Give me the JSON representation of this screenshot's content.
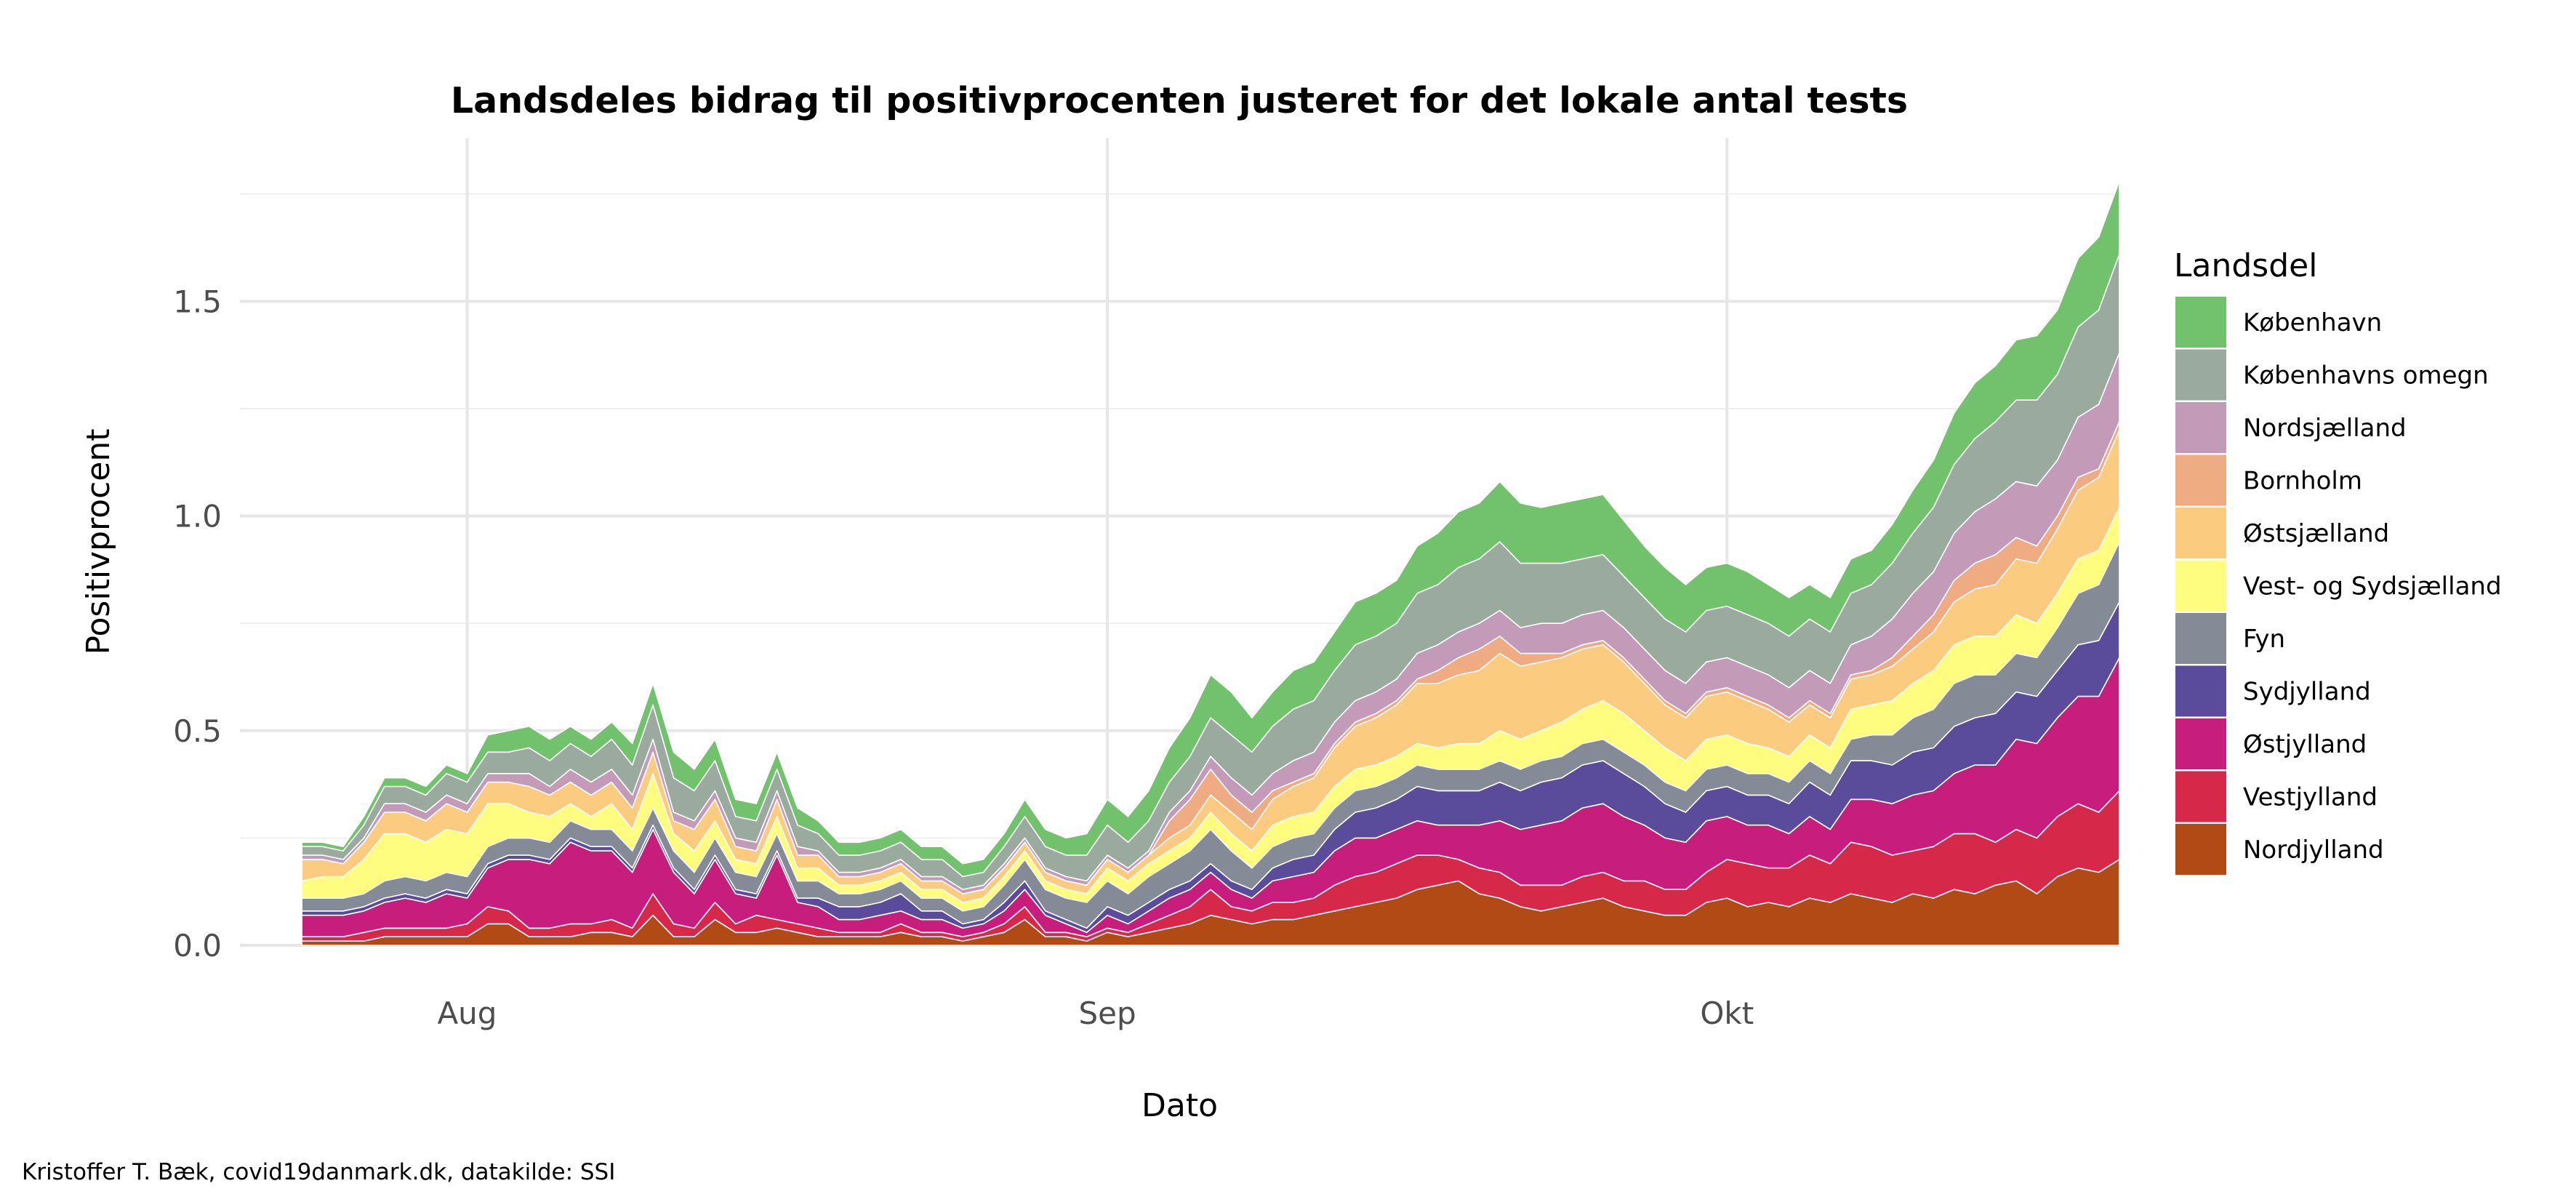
{
  "chart_data": {
    "type": "area",
    "stacked": true,
    "title": "Landsdeles bidrag til positivprocenten justeret for det lokale antal tests",
    "xlabel": "Dato",
    "ylabel": "Positivprocent",
    "caption": "Kristoffer T. Bæk, covid19danmark.dk, datakilde: SSI",
    "legend_title": "Landsdel",
    "legend_position": "right",
    "grid": true,
    "ylim": [
      0,
      1.88
    ],
    "xlim": [
      "2020-07-21",
      "2020-10-20"
    ],
    "x_start": "2020-07-24",
    "y_ticks": [
      0.0,
      0.5,
      1.0,
      1.5
    ],
    "y_tick_labels": [
      "0.0",
      "0.5",
      "1.0",
      "1.5"
    ],
    "x_ticks": [
      "2020-08-01",
      "2020-09-01",
      "2020-10-01"
    ],
    "x_tick_labels": [
      "Aug",
      "Sep",
      "Okt"
    ],
    "dates": [
      "2020-07-24",
      "2020-07-25",
      "2020-07-26",
      "2020-07-27",
      "2020-07-28",
      "2020-07-29",
      "2020-07-30",
      "2020-07-31",
      "2020-08-01",
      "2020-08-02",
      "2020-08-03",
      "2020-08-04",
      "2020-08-05",
      "2020-08-06",
      "2020-08-07",
      "2020-08-08",
      "2020-08-09",
      "2020-08-10",
      "2020-08-11",
      "2020-08-12",
      "2020-08-13",
      "2020-08-14",
      "2020-08-15",
      "2020-08-16",
      "2020-08-17",
      "2020-08-18",
      "2020-08-19",
      "2020-08-20",
      "2020-08-21",
      "2020-08-22",
      "2020-08-23",
      "2020-08-24",
      "2020-08-25",
      "2020-08-26",
      "2020-08-27",
      "2020-08-28",
      "2020-08-29",
      "2020-08-30",
      "2020-08-31",
      "2020-09-01",
      "2020-09-02",
      "2020-09-03",
      "2020-09-04",
      "2020-09-05",
      "2020-09-06",
      "2020-09-07",
      "2020-09-08",
      "2020-09-09",
      "2020-09-10",
      "2020-09-11",
      "2020-09-12",
      "2020-09-13",
      "2020-09-14",
      "2020-09-15",
      "2020-09-16",
      "2020-09-17",
      "2020-09-18",
      "2020-09-19",
      "2020-09-20",
      "2020-09-21",
      "2020-09-22",
      "2020-09-23",
      "2020-09-24",
      "2020-09-25",
      "2020-09-26",
      "2020-09-27",
      "2020-09-28",
      "2020-09-29",
      "2020-09-30",
      "2020-10-01",
      "2020-10-02",
      "2020-10-03",
      "2020-10-04",
      "2020-10-05",
      "2020-10-06",
      "2020-10-07",
      "2020-10-08",
      "2020-10-09",
      "2020-10-10",
      "2020-10-11",
      "2020-10-12",
      "2020-10-13",
      "2020-10-14",
      "2020-10-15",
      "2020-10-16",
      "2020-10-17",
      "2020-10-18",
      "2020-10-19",
      "2020-10-20"
    ],
    "series": [
      {
        "name": "Nordjylland",
        "color": "#b24a16",
        "values": [
          0.01,
          0.01,
          0.01,
          0.01,
          0.02,
          0.02,
          0.02,
          0.02,
          0.02,
          0.05,
          0.05,
          0.02,
          0.02,
          0.02,
          0.03,
          0.03,
          0.02,
          0.07,
          0.02,
          0.02,
          0.06,
          0.03,
          0.03,
          0.04,
          0.03,
          0.02,
          0.02,
          0.02,
          0.02,
          0.03,
          0.02,
          0.02,
          0.01,
          0.02,
          0.03,
          0.06,
          0.02,
          0.02,
          0.01,
          0.03,
          0.02,
          0.03,
          0.04,
          0.05,
          0.07,
          0.06,
          0.05,
          0.06,
          0.06,
          0.07,
          0.08,
          0.09,
          0.1,
          0.11,
          0.13,
          0.14,
          0.15,
          0.12,
          0.11,
          0.09,
          0.08,
          0.09,
          0.1,
          0.11,
          0.09,
          0.08,
          0.07,
          0.07,
          0.1,
          0.11,
          0.09,
          0.1,
          0.09,
          0.11,
          0.1,
          0.12,
          0.11,
          0.1,
          0.12,
          0.11,
          0.13,
          0.12,
          0.14,
          0.15,
          0.12,
          0.16,
          0.18,
          0.17,
          0.2
        ]
      },
      {
        "name": "Vestjylland",
        "color": "#d6294a",
        "values": [
          0.01,
          0.01,
          0.01,
          0.02,
          0.02,
          0.02,
          0.02,
          0.02,
          0.03,
          0.04,
          0.03,
          0.02,
          0.02,
          0.03,
          0.02,
          0.03,
          0.02,
          0.05,
          0.03,
          0.02,
          0.04,
          0.02,
          0.04,
          0.02,
          0.02,
          0.02,
          0.01,
          0.01,
          0.01,
          0.02,
          0.01,
          0.01,
          0.01,
          0.01,
          0.02,
          0.03,
          0.01,
          0.01,
          0.01,
          0.01,
          0.01,
          0.02,
          0.03,
          0.04,
          0.06,
          0.03,
          0.03,
          0.04,
          0.04,
          0.04,
          0.06,
          0.07,
          0.07,
          0.08,
          0.08,
          0.07,
          0.05,
          0.06,
          0.06,
          0.05,
          0.06,
          0.05,
          0.06,
          0.06,
          0.06,
          0.07,
          0.06,
          0.06,
          0.07,
          0.09,
          0.1,
          0.08,
          0.09,
          0.1,
          0.09,
          0.12,
          0.12,
          0.11,
          0.1,
          0.12,
          0.13,
          0.14,
          0.1,
          0.12,
          0.13,
          0.14,
          0.15,
          0.14,
          0.16
        ]
      },
      {
        "name": "Østjylland",
        "color": "#c71d7d",
        "values": [
          0.05,
          0.05,
          0.05,
          0.05,
          0.06,
          0.07,
          0.06,
          0.08,
          0.06,
          0.09,
          0.12,
          0.16,
          0.15,
          0.19,
          0.17,
          0.16,
          0.13,
          0.15,
          0.12,
          0.08,
          0.1,
          0.07,
          0.04,
          0.15,
          0.05,
          0.05,
          0.03,
          0.03,
          0.04,
          0.03,
          0.03,
          0.03,
          0.02,
          0.02,
          0.03,
          0.04,
          0.04,
          0.02,
          0.01,
          0.03,
          0.02,
          0.03,
          0.04,
          0.04,
          0.04,
          0.04,
          0.03,
          0.05,
          0.06,
          0.06,
          0.08,
          0.09,
          0.08,
          0.08,
          0.08,
          0.07,
          0.08,
          0.1,
          0.12,
          0.13,
          0.14,
          0.15,
          0.16,
          0.16,
          0.15,
          0.13,
          0.12,
          0.11,
          0.12,
          0.1,
          0.09,
          0.1,
          0.08,
          0.09,
          0.08,
          0.1,
          0.11,
          0.12,
          0.13,
          0.13,
          0.14,
          0.16,
          0.18,
          0.21,
          0.22,
          0.23,
          0.25,
          0.27,
          0.31
        ]
      },
      {
        "name": "Sydjylland",
        "color": "#5a4b9b",
        "values": [
          0.01,
          0.01,
          0.01,
          0.01,
          0.01,
          0.01,
          0.01,
          0.01,
          0.01,
          0.01,
          0.01,
          0.01,
          0.01,
          0.01,
          0.01,
          0.01,
          0.01,
          0.01,
          0.01,
          0.01,
          0.01,
          0.01,
          0.01,
          0.01,
          0.01,
          0.02,
          0.03,
          0.03,
          0.03,
          0.04,
          0.02,
          0.02,
          0.01,
          0.01,
          0.02,
          0.02,
          0.01,
          0.01,
          0.01,
          0.02,
          0.02,
          0.02,
          0.02,
          0.02,
          0.02,
          0.02,
          0.02,
          0.03,
          0.04,
          0.04,
          0.05,
          0.06,
          0.07,
          0.07,
          0.08,
          0.08,
          0.08,
          0.08,
          0.09,
          0.09,
          0.1,
          0.1,
          0.1,
          0.1,
          0.1,
          0.09,
          0.08,
          0.07,
          0.07,
          0.07,
          0.07,
          0.07,
          0.07,
          0.08,
          0.08,
          0.09,
          0.09,
          0.09,
          0.1,
          0.1,
          0.11,
          0.11,
          0.12,
          0.11,
          0.11,
          0.11,
          0.12,
          0.13,
          0.13
        ]
      },
      {
        "name": "Fyn",
        "color": "#848b97",
        "values": [
          0.03,
          0.03,
          0.03,
          0.03,
          0.04,
          0.04,
          0.04,
          0.04,
          0.04,
          0.04,
          0.04,
          0.04,
          0.04,
          0.04,
          0.04,
          0.04,
          0.04,
          0.04,
          0.04,
          0.04,
          0.04,
          0.04,
          0.04,
          0.04,
          0.04,
          0.04,
          0.03,
          0.03,
          0.03,
          0.03,
          0.03,
          0.03,
          0.03,
          0.03,
          0.04,
          0.05,
          0.05,
          0.05,
          0.06,
          0.06,
          0.05,
          0.06,
          0.06,
          0.07,
          0.08,
          0.07,
          0.05,
          0.05,
          0.05,
          0.05,
          0.05,
          0.05,
          0.05,
          0.05,
          0.05,
          0.05,
          0.05,
          0.05,
          0.05,
          0.05,
          0.05,
          0.05,
          0.05,
          0.05,
          0.05,
          0.05,
          0.05,
          0.05,
          0.05,
          0.05,
          0.05,
          0.05,
          0.05,
          0.05,
          0.05,
          0.05,
          0.06,
          0.07,
          0.08,
          0.09,
          0.1,
          0.1,
          0.09,
          0.09,
          0.09,
          0.1,
          0.12,
          0.13,
          0.14
        ]
      },
      {
        "name": "Vest- og Sydsjælland",
        "color": "#fefd7f",
        "values": [
          0.04,
          0.05,
          0.05,
          0.08,
          0.11,
          0.1,
          0.09,
          0.1,
          0.1,
          0.1,
          0.08,
          0.06,
          0.06,
          0.04,
          0.03,
          0.06,
          0.05,
          0.08,
          0.04,
          0.05,
          0.04,
          0.03,
          0.03,
          0.04,
          0.03,
          0.03,
          0.02,
          0.02,
          0.02,
          0.02,
          0.02,
          0.02,
          0.02,
          0.02,
          0.02,
          0.02,
          0.02,
          0.02,
          0.02,
          0.03,
          0.03,
          0.03,
          0.03,
          0.03,
          0.04,
          0.04,
          0.04,
          0.05,
          0.05,
          0.05,
          0.05,
          0.05,
          0.05,
          0.05,
          0.05,
          0.05,
          0.06,
          0.06,
          0.07,
          0.07,
          0.07,
          0.08,
          0.08,
          0.09,
          0.09,
          0.08,
          0.08,
          0.07,
          0.07,
          0.07,
          0.07,
          0.06,
          0.06,
          0.06,
          0.06,
          0.07,
          0.07,
          0.08,
          0.08,
          0.09,
          0.09,
          0.09,
          0.09,
          0.09,
          0.08,
          0.08,
          0.08,
          0.08,
          0.08
        ]
      },
      {
        "name": "Østsjælland",
        "color": "#fbcb7f",
        "values": [
          0.05,
          0.04,
          0.03,
          0.04,
          0.05,
          0.05,
          0.05,
          0.06,
          0.05,
          0.05,
          0.05,
          0.06,
          0.05,
          0.05,
          0.05,
          0.05,
          0.05,
          0.05,
          0.03,
          0.05,
          0.05,
          0.03,
          0.03,
          0.04,
          0.03,
          0.03,
          0.02,
          0.02,
          0.02,
          0.02,
          0.02,
          0.02,
          0.02,
          0.02,
          0.02,
          0.02,
          0.02,
          0.02,
          0.02,
          0.02,
          0.02,
          0.02,
          0.03,
          0.03,
          0.04,
          0.05,
          0.05,
          0.06,
          0.07,
          0.08,
          0.09,
          0.1,
          0.11,
          0.12,
          0.14,
          0.15,
          0.16,
          0.17,
          0.18,
          0.17,
          0.16,
          0.15,
          0.14,
          0.13,
          0.12,
          0.11,
          0.1,
          0.1,
          0.1,
          0.1,
          0.1,
          0.09,
          0.08,
          0.07,
          0.07,
          0.07,
          0.07,
          0.08,
          0.08,
          0.09,
          0.1,
          0.11,
          0.12,
          0.13,
          0.14,
          0.15,
          0.16,
          0.17,
          0.18
        ]
      },
      {
        "name": "Bornholm",
        "color": "#efab82",
        "values": [
          0.0,
          0.0,
          0.0,
          0.0,
          0.0,
          0.0,
          0.0,
          0.0,
          0.0,
          0.0,
          0.0,
          0.0,
          0.0,
          0.0,
          0.0,
          0.0,
          0.0,
          0.0,
          0.0,
          0.0,
          0.0,
          0.0,
          0.0,
          0.0,
          0.0,
          0.0,
          0.0,
          0.0,
          0.0,
          0.0,
          0.0,
          0.0,
          0.0,
          0.0,
          0.0,
          0.0,
          0.0,
          0.0,
          0.0,
          0.0,
          0.0,
          0.0,
          0.04,
          0.06,
          0.06,
          0.04,
          0.04,
          0.02,
          0.01,
          0.01,
          0.01,
          0.01,
          0.01,
          0.01,
          0.01,
          0.03,
          0.04,
          0.05,
          0.04,
          0.03,
          0.02,
          0.01,
          0.01,
          0.01,
          0.01,
          0.01,
          0.01,
          0.01,
          0.01,
          0.01,
          0.01,
          0.01,
          0.01,
          0.01,
          0.01,
          0.01,
          0.01,
          0.02,
          0.03,
          0.04,
          0.05,
          0.06,
          0.07,
          0.05,
          0.04,
          0.03,
          0.03,
          0.02,
          0.02
        ]
      },
      {
        "name": "Nordsjælland",
        "color": "#c39ab8",
        "values": [
          0.01,
          0.01,
          0.01,
          0.01,
          0.02,
          0.02,
          0.02,
          0.02,
          0.02,
          0.02,
          0.02,
          0.03,
          0.02,
          0.03,
          0.03,
          0.03,
          0.03,
          0.03,
          0.02,
          0.02,
          0.02,
          0.02,
          0.02,
          0.02,
          0.02,
          0.01,
          0.01,
          0.01,
          0.01,
          0.01,
          0.01,
          0.01,
          0.01,
          0.01,
          0.01,
          0.01,
          0.01,
          0.01,
          0.01,
          0.01,
          0.01,
          0.01,
          0.02,
          0.02,
          0.03,
          0.04,
          0.04,
          0.04,
          0.05,
          0.05,
          0.05,
          0.05,
          0.05,
          0.05,
          0.06,
          0.06,
          0.06,
          0.06,
          0.06,
          0.06,
          0.07,
          0.07,
          0.07,
          0.07,
          0.07,
          0.07,
          0.07,
          0.07,
          0.07,
          0.07,
          0.07,
          0.07,
          0.07,
          0.07,
          0.07,
          0.07,
          0.08,
          0.09,
          0.1,
          0.1,
          0.11,
          0.12,
          0.13,
          0.13,
          0.14,
          0.13,
          0.14,
          0.15,
          0.16
        ]
      },
      {
        "name": "Københavns omegn",
        "color": "#9baa9f",
        "values": [
          0.02,
          0.02,
          0.02,
          0.03,
          0.04,
          0.04,
          0.04,
          0.05,
          0.05,
          0.05,
          0.05,
          0.06,
          0.06,
          0.06,
          0.06,
          0.07,
          0.07,
          0.08,
          0.08,
          0.07,
          0.07,
          0.05,
          0.05,
          0.05,
          0.05,
          0.04,
          0.04,
          0.04,
          0.04,
          0.04,
          0.04,
          0.04,
          0.03,
          0.03,
          0.04,
          0.05,
          0.05,
          0.05,
          0.06,
          0.07,
          0.06,
          0.07,
          0.07,
          0.08,
          0.09,
          0.1,
          0.1,
          0.11,
          0.12,
          0.12,
          0.12,
          0.13,
          0.13,
          0.13,
          0.14,
          0.14,
          0.15,
          0.15,
          0.16,
          0.15,
          0.14,
          0.14,
          0.13,
          0.13,
          0.12,
          0.12,
          0.12,
          0.12,
          0.12,
          0.12,
          0.12,
          0.12,
          0.12,
          0.12,
          0.12,
          0.12,
          0.12,
          0.13,
          0.14,
          0.15,
          0.16,
          0.17,
          0.18,
          0.19,
          0.2,
          0.2,
          0.21,
          0.22,
          0.23
        ]
      },
      {
        "name": "København",
        "color": "#72c16d",
        "values": [
          0.01,
          0.01,
          0.01,
          0.02,
          0.02,
          0.02,
          0.02,
          0.02,
          0.02,
          0.04,
          0.05,
          0.05,
          0.05,
          0.04,
          0.04,
          0.04,
          0.05,
          0.05,
          0.06,
          0.05,
          0.05,
          0.04,
          0.04,
          0.04,
          0.04,
          0.03,
          0.03,
          0.03,
          0.03,
          0.03,
          0.03,
          0.03,
          0.03,
          0.03,
          0.03,
          0.04,
          0.04,
          0.04,
          0.05,
          0.06,
          0.06,
          0.07,
          0.08,
          0.09,
          0.1,
          0.1,
          0.08,
          0.08,
          0.09,
          0.09,
          0.09,
          0.1,
          0.1,
          0.1,
          0.11,
          0.12,
          0.13,
          0.13,
          0.14,
          0.14,
          0.13,
          0.14,
          0.14,
          0.14,
          0.13,
          0.12,
          0.12,
          0.11,
          0.1,
          0.1,
          0.1,
          0.09,
          0.09,
          0.08,
          0.08,
          0.08,
          0.08,
          0.09,
          0.1,
          0.11,
          0.12,
          0.13,
          0.13,
          0.14,
          0.15,
          0.15,
          0.16,
          0.17,
          0.17
        ]
      }
    ]
  }
}
